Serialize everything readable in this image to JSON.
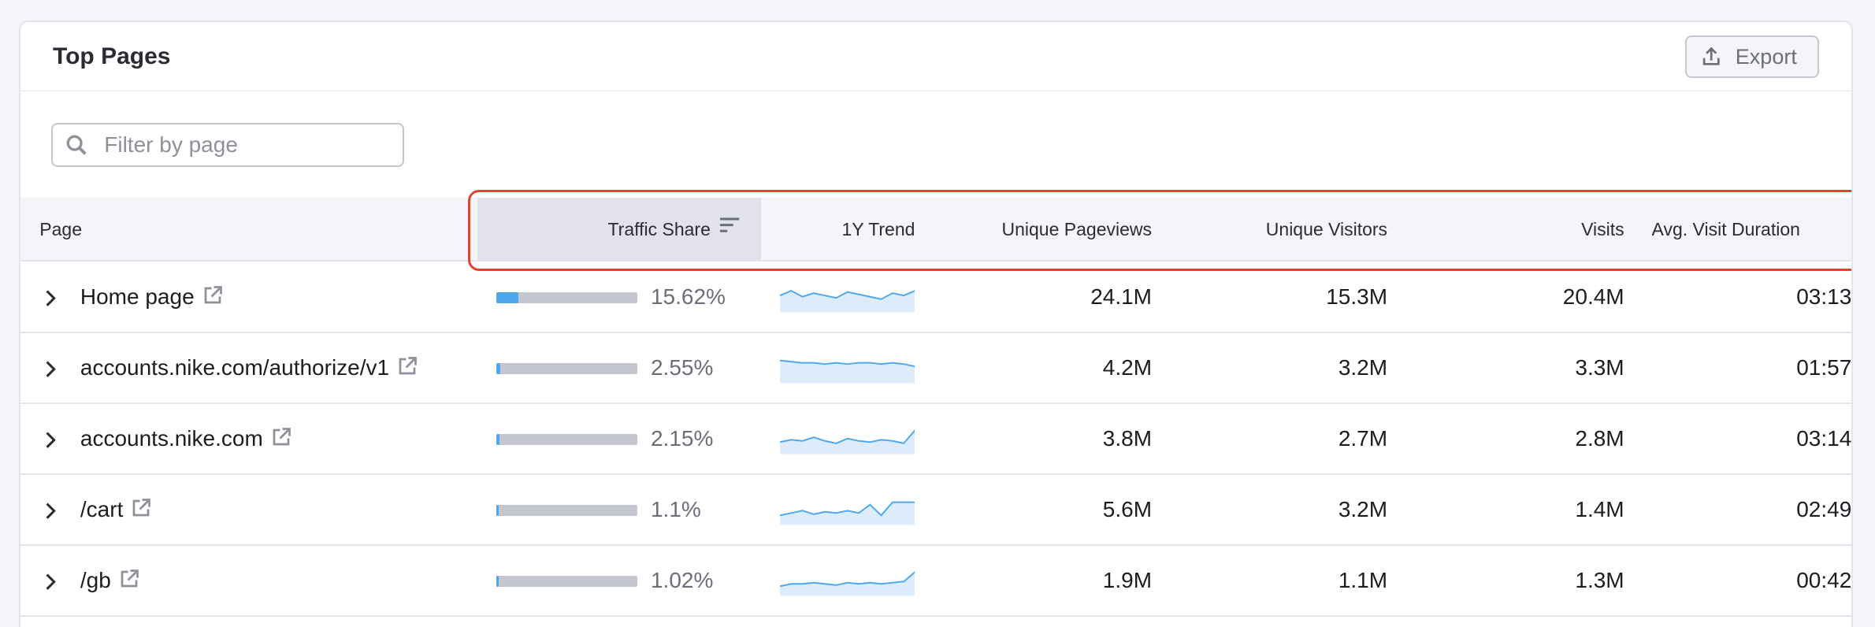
{
  "header": {
    "title": "Top Pages",
    "export_button": "Export"
  },
  "filter": {
    "placeholder": "Filter by page"
  },
  "table": {
    "columns": [
      "Page",
      "Traffic Share",
      "1Y Trend",
      "Unique Pageviews",
      "Unique Visitors",
      "Visits",
      "Avg. Visit Duration"
    ],
    "rows": [
      {
        "page": "Home page",
        "traffic_share": "15.62%",
        "unique_pageviews": "24.1M",
        "unique_visitors": "15.3M",
        "visits": "20.4M",
        "avg_visit_duration": "03:13"
      },
      {
        "page": "accounts.nike.com/authorize/v1",
        "traffic_share": "2.55%",
        "unique_pageviews": "4.2M",
        "unique_visitors": "3.2M",
        "visits": "3.3M",
        "avg_visit_duration": "01:57"
      },
      {
        "page": "accounts.nike.com",
        "traffic_share": "2.15%",
        "unique_pageviews": "3.8M",
        "unique_visitors": "2.7M",
        "visits": "2.8M",
        "avg_visit_duration": "03:14"
      },
      {
        "page": "/cart",
        "traffic_share": "1.1%",
        "unique_pageviews": "5.6M",
        "unique_visitors": "3.2M",
        "visits": "1.4M",
        "avg_visit_duration": "02:49"
      },
      {
        "page": "/gb",
        "traffic_share": "1.02%",
        "unique_pageviews": "1.9M",
        "unique_visitors": "1.1M",
        "visits": "1.3M",
        "avg_visit_duration": "00:42"
      }
    ]
  }
}
